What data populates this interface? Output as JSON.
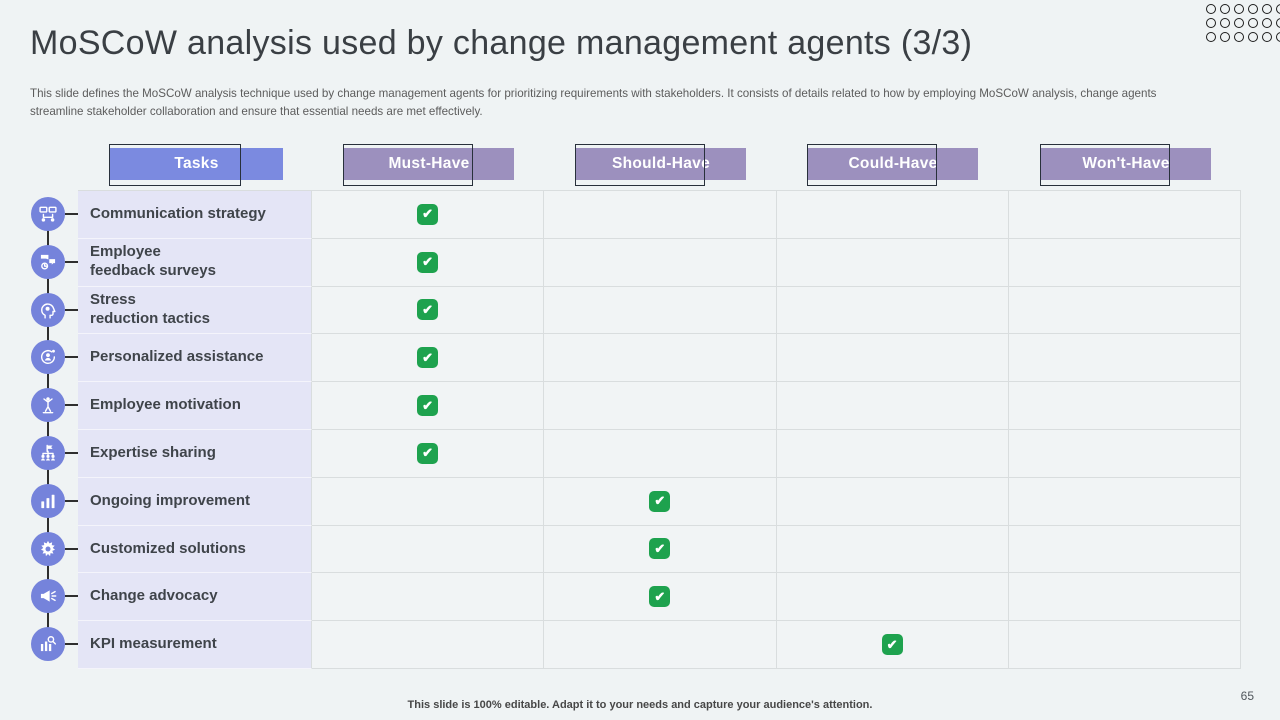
{
  "slide": {
    "title": "MoSCoW analysis used by change management agents (3/3)",
    "subtitle": "This slide defines the MoSCoW analysis technique used by change management agents for prioritizing requirements with stakeholders. It consists of details related to how by employing MoSCoW analysis, change agents streamline stakeholder collaboration and ensure that essential needs are met effectively.",
    "footer": "This slide is 100% editable. Adapt it to your needs and capture your audience's attention.",
    "page_number": "65"
  },
  "colors": {
    "tasks_header": "#7B8AE0",
    "priority_header": "#9C90BE",
    "check_green": "#1EA24E",
    "icon_circle": "#7583DB",
    "task_cell_bg": "#E4E5F6",
    "background": "#EFF3F4"
  },
  "table": {
    "columns": [
      {
        "label": "Tasks",
        "color": "#7B8AE0"
      },
      {
        "label": "Must-Have",
        "color": "#9C90BE"
      },
      {
        "label": "Should-Have",
        "color": "#9C90BE"
      },
      {
        "label": "Could-Have",
        "color": "#9C90BE"
      },
      {
        "label": "Won't-Have",
        "color": "#9C90BE"
      }
    ],
    "rows": [
      {
        "task": "Communication strategy",
        "icon": "org-communication-icon",
        "check": "Must-Have"
      },
      {
        "task": "Employee\nfeedback surveys",
        "icon": "feedback-survey-icon",
        "check": "Must-Have"
      },
      {
        "task": "Stress\nreduction tactics",
        "icon": "mind-gear-icon",
        "check": "Must-Have"
      },
      {
        "task": "Personalized assistance",
        "icon": "personal-assistance-icon",
        "check": "Must-Have"
      },
      {
        "task": "Employee motivation",
        "icon": "motivation-person-icon",
        "check": "Must-Have"
      },
      {
        "task": "Expertise sharing",
        "icon": "expertise-network-icon",
        "check": "Must-Have"
      },
      {
        "task": "Ongoing improvement",
        "icon": "bar-chart-icon",
        "check": "Should-Have"
      },
      {
        "task": "Customized solutions",
        "icon": "gear-burst-icon",
        "check": "Should-Have"
      },
      {
        "task": "Change advocacy",
        "icon": "megaphone-icon",
        "check": "Should-Have"
      },
      {
        "task": "KPI measurement",
        "icon": "kpi-chart-icon",
        "check": "Could-Have"
      }
    ]
  }
}
